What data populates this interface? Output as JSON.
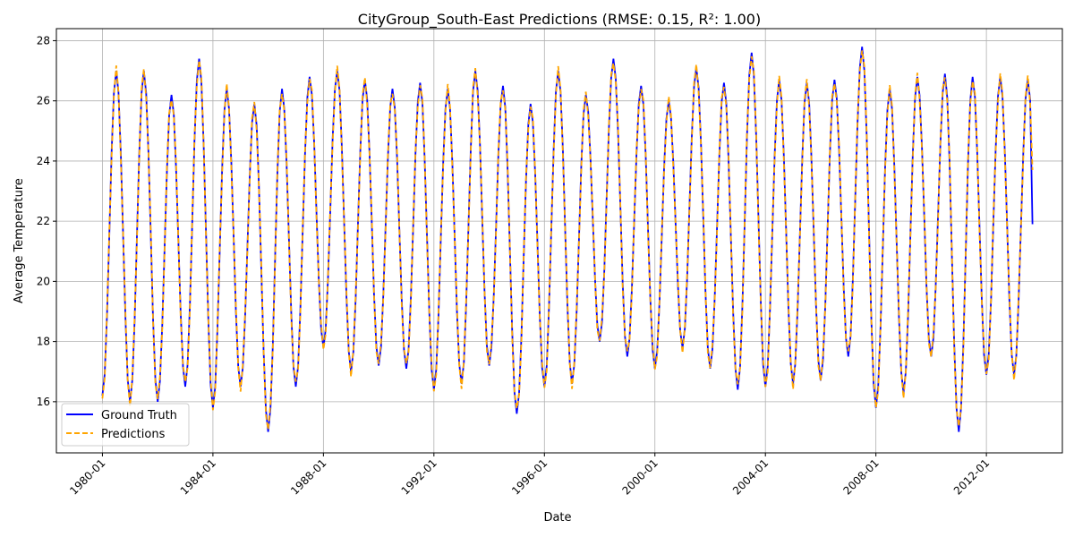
{
  "chart_data": {
    "type": "line",
    "title": "CityGroup_South-East Predictions (RMSE: 0.15, R²: 1.00)",
    "xlabel": "Date",
    "ylabel": "Average Temperature",
    "x_ticks": [
      "1980-01",
      "1984-01",
      "1988-01",
      "1992-01",
      "1996-01",
      "2000-01",
      "2004-01",
      "2008-01",
      "2012-01"
    ],
    "y_ticks": [
      16,
      18,
      20,
      22,
      24,
      26,
      28
    ],
    "x_range": [
      "1978-05",
      "2014-10"
    ],
    "ylim": [
      14.3,
      28.4
    ],
    "grid": true,
    "legend_position": "bottom-left",
    "x_start": "1980-01",
    "x_end": "2013-09",
    "annual_peaks": [
      27.0,
      27.0,
      26.2,
      27.4,
      26.4,
      25.9,
      26.4,
      26.8,
      27.0,
      26.7,
      26.4,
      26.6,
      26.4,
      27.0,
      26.5,
      25.9,
      27.0,
      26.2,
      27.4,
      26.5,
      26.0,
      27.1,
      26.6,
      27.6,
      26.7,
      26.6,
      26.7,
      27.8,
      26.4,
      26.8,
      26.9,
      26.8,
      26.8,
      26.7
    ],
    "annual_troughs": [
      16.2,
      16.0,
      16.0,
      16.5,
      15.8,
      16.5,
      15.0,
      16.5,
      17.8,
      17.0,
      17.2,
      17.1,
      16.4,
      16.6,
      17.2,
      15.6,
      16.5,
      16.6,
      18.0,
      17.5,
      17.1,
      17.8,
      17.1,
      16.4,
      16.5,
      16.6,
      16.7,
      17.5,
      15.8,
      16.3,
      17.5,
      15.0,
      16.9,
      16.9
    ],
    "series": [
      {
        "name": "Ground Truth",
        "color": "#0000ff",
        "style": "solid",
        "last_value": 21.9
      },
      {
        "name": "Predictions",
        "color": "#ffa500",
        "style": "dashed",
        "last_value": 23.7
      }
    ]
  }
}
